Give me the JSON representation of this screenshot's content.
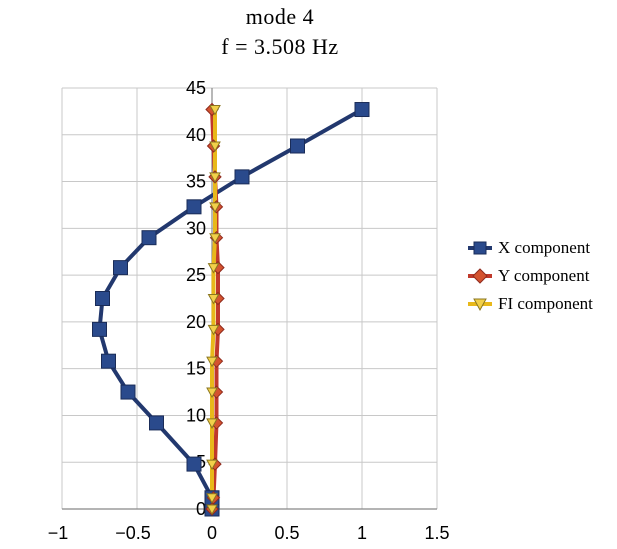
{
  "title_line1": "mode 4",
  "title_line2": "f = 3.508 Hz",
  "chart_data": {
    "type": "line",
    "title": "mode 4 f = 3.508 Hz",
    "xlabel": "",
    "ylabel": "",
    "xlim": [
      -1,
      1.5
    ],
    "ylim": [
      0,
      45
    ],
    "xticks": [
      -1,
      -0.5,
      0,
      0.5,
      1,
      1.5
    ],
    "xtick_labels": [
      "−1",
      "−0.5",
      "0",
      "0.5",
      "1",
      "1.5"
    ],
    "yticks": [
      0,
      5,
      10,
      15,
      20,
      25,
      30,
      35,
      40,
      45
    ],
    "ytick_labels": [
      "0",
      "5",
      "10",
      "15",
      "20",
      "25",
      "30",
      "35",
      "40",
      "45"
    ],
    "grid": true,
    "legend_position": "right",
    "series": [
      {
        "name": "X component",
        "color": "#22386e",
        "marker": "square",
        "marker_fill": "#2a4a8c",
        "points": [
          [
            0.0,
            0.0
          ],
          [
            0.0,
            1.2
          ],
          [
            -0.12,
            4.8
          ],
          [
            -0.37,
            9.2
          ],
          [
            -0.56,
            12.5
          ],
          [
            -0.69,
            15.8
          ],
          [
            -0.75,
            19.2
          ],
          [
            -0.73,
            22.5
          ],
          [
            -0.61,
            25.8
          ],
          [
            -0.42,
            29.0
          ],
          [
            -0.12,
            32.3
          ],
          [
            0.2,
            35.5
          ],
          [
            0.57,
            38.8
          ],
          [
            1.0,
            42.7
          ]
        ]
      },
      {
        "name": "Y component",
        "color": "#c0392b",
        "marker": "diamond",
        "marker_fill": "#d4532f",
        "points": [
          [
            0.0,
            0.0
          ],
          [
            0.01,
            1.2
          ],
          [
            0.02,
            4.8
          ],
          [
            0.03,
            9.2
          ],
          [
            0.03,
            12.5
          ],
          [
            0.03,
            15.8
          ],
          [
            0.04,
            19.2
          ],
          [
            0.04,
            22.5
          ],
          [
            0.04,
            25.8
          ],
          [
            0.03,
            29.0
          ],
          [
            0.03,
            32.3
          ],
          [
            0.02,
            35.5
          ],
          [
            0.01,
            38.8
          ],
          [
            0.0,
            42.7
          ]
        ]
      },
      {
        "name": "FI component",
        "color": "#e8b81a",
        "marker": "triangle-down",
        "marker_fill": "#f2d04a",
        "points": [
          [
            0.0,
            0.0
          ],
          [
            0.0,
            1.2
          ],
          [
            0.0,
            4.8
          ],
          [
            0.0,
            9.2
          ],
          [
            0.0,
            12.5
          ],
          [
            0.0,
            15.8
          ],
          [
            0.01,
            19.2
          ],
          [
            0.01,
            22.5
          ],
          [
            0.01,
            25.8
          ],
          [
            0.02,
            29.0
          ],
          [
            0.02,
            32.3
          ],
          [
            0.02,
            35.5
          ],
          [
            0.02,
            38.8
          ],
          [
            0.02,
            42.7
          ]
        ]
      }
    ]
  }
}
